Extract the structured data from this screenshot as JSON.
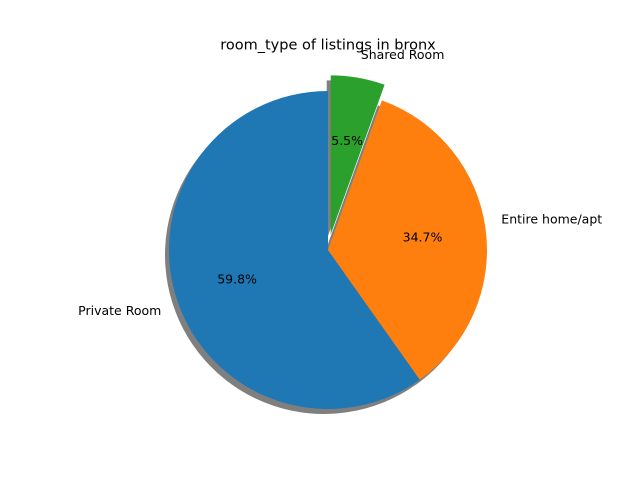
{
  "chart_data": {
    "type": "pie",
    "title": "room_type of listings in bronx",
    "slices": [
      {
        "label": "Private Room",
        "value": 59.8,
        "pct_label": "59.8%",
        "color": "#1f77b4",
        "exploded": false
      },
      {
        "label": "Entire home/apt",
        "value": 34.7,
        "pct_label": "34.7%",
        "color": "#ff7f0e",
        "exploded": false
      },
      {
        "label": "Shared Room",
        "value": 5.5,
        "pct_label": "5.5%",
        "color": "#2ca02c",
        "exploded": true
      }
    ],
    "start_angle_deg": 90,
    "direction": "counterclockwise",
    "shadow": true,
    "legend": "none"
  }
}
